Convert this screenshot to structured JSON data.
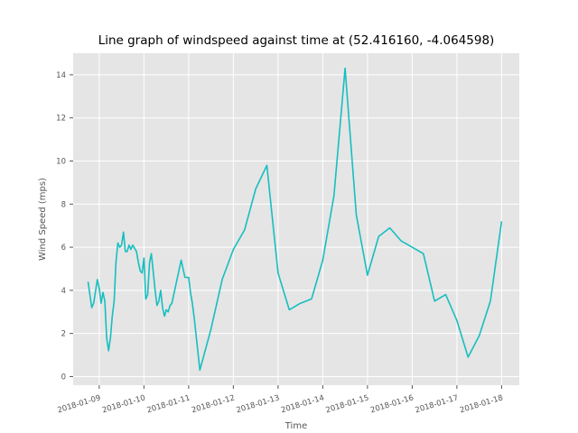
{
  "chart_data": {
    "type": "line",
    "title": "Line graph of windspeed against time at (52.416160, -4.064598)",
    "xlabel": "Time",
    "ylabel": "Wind Speed (mps)",
    "x_tick_labels": [
      "2018-01-09",
      "2018-01-10",
      "2018-01-11",
      "2018-01-12",
      "2018-01-13",
      "2018-01-14",
      "2018-01-15",
      "2018-01-16",
      "2018-01-17",
      "2018-01-18"
    ],
    "xlim": [
      "2018-01-08T10:00",
      "2018-01-18T09:30"
    ],
    "ylim": [
      -0.4,
      15.0
    ],
    "y_ticks": [
      0,
      2,
      4,
      6,
      8,
      10,
      12,
      14
    ],
    "grid": true,
    "background": "#e5e5e5",
    "grid_color": "#ffffff",
    "line_color": "#17bec0",
    "series": [
      {
        "x": [
          "2018-01-08T18:00",
          "2018-01-08T20:00",
          "2018-01-08T21:00",
          "2018-01-08T23:00",
          "2018-01-09T00:00",
          "2018-01-09T01:00",
          "2018-01-09T02:00",
          "2018-01-09T03:00",
          "2018-01-09T04:00",
          "2018-01-09T05:00",
          "2018-01-09T06:00",
          "2018-01-09T07:00",
          "2018-01-09T08:00",
          "2018-01-09T09:00",
          "2018-01-09T10:00",
          "2018-01-09T11:00",
          "2018-01-09T12:00",
          "2018-01-09T13:00",
          "2018-01-09T14:00",
          "2018-01-09T15:00",
          "2018-01-09T16:00",
          "2018-01-09T17:00",
          "2018-01-09T18:00",
          "2018-01-09T20:00",
          "2018-01-09T21:00",
          "2018-01-09T22:00",
          "2018-01-09T23:00",
          "2018-01-10T00:00",
          "2018-01-10T01:00",
          "2018-01-10T02:00",
          "2018-01-10T03:00",
          "2018-01-10T04:00",
          "2018-01-10T06:00",
          "2018-01-10T07:00",
          "2018-01-10T08:00",
          "2018-01-10T09:00",
          "2018-01-10T10:00",
          "2018-01-10T11:00",
          "2018-01-10T12:00",
          "2018-01-10T13:00",
          "2018-01-10T14:00",
          "2018-01-10T15:00",
          "2018-01-10T16:00",
          "2018-01-10T18:00",
          "2018-01-10T20:00",
          "2018-01-10T22:00",
          "2018-01-11T00:00",
          "2018-01-11T01:00",
          "2018-01-11T02:00",
          "2018-01-11T03:00",
          "2018-01-11T06:00",
          "2018-01-11T12:00",
          "2018-01-11T18:00",
          "2018-01-12T00:00",
          "2018-01-12T06:00",
          "2018-01-12T12:00",
          "2018-01-12T18:00",
          "2018-01-13T00:00",
          "2018-01-13T06:00",
          "2018-01-13T12:00",
          "2018-01-13T18:00",
          "2018-01-14T00:00",
          "2018-01-14T06:00",
          "2018-01-14T12:00",
          "2018-01-14T18:00",
          "2018-01-15T00:00",
          "2018-01-15T06:00",
          "2018-01-15T12:00",
          "2018-01-15T18:00",
          "2018-01-16T06:00",
          "2018-01-16T12:00",
          "2018-01-16T18:00",
          "2018-01-17T00:00",
          "2018-01-17T06:00",
          "2018-01-17T12:00",
          "2018-01-17T18:00",
          "2018-01-18T00:00"
        ],
        "values": [
          4.4,
          3.2,
          3.4,
          4.5,
          4.1,
          3.4,
          3.9,
          3.5,
          1.8,
          1.2,
          1.8,
          2.8,
          3.5,
          5.3,
          6.2,
          6.0,
          6.1,
          6.7,
          5.8,
          5.8,
          6.1,
          5.9,
          6.1,
          5.8,
          5.3,
          4.9,
          4.8,
          5.5,
          3.6,
          3.8,
          5.3,
          5.7,
          4.0,
          3.3,
          3.5,
          4.0,
          3.2,
          2.8,
          3.1,
          3.0,
          3.3,
          3.4,
          3.8,
          4.6,
          5.4,
          4.6,
          4.6,
          3.9,
          3.4,
          2.7,
          0.3,
          2.2,
          4.5,
          5.9,
          6.8,
          8.7,
          9.8,
          4.8,
          3.1,
          3.4,
          3.6,
          5.4,
          8.4,
          14.3,
          7.5,
          4.7,
          6.5,
          6.9,
          6.3,
          5.7,
          3.5,
          3.8,
          2.6,
          0.9,
          1.9,
          3.5,
          7.2
        ]
      }
    ]
  }
}
